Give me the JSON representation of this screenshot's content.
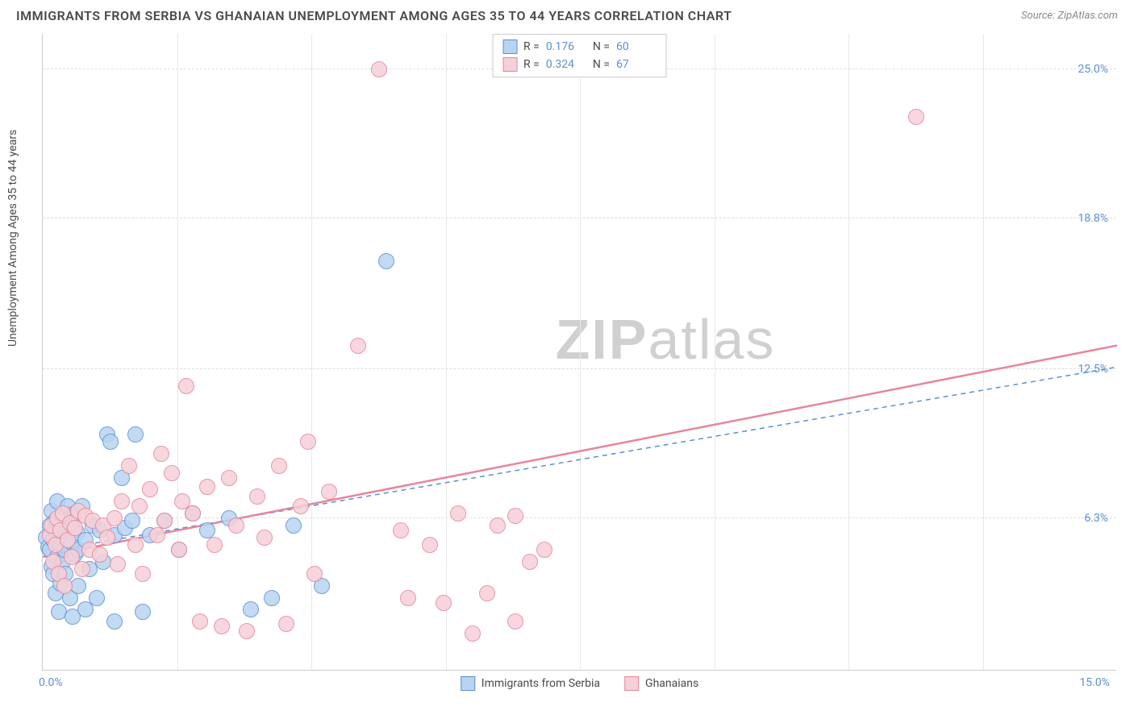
{
  "header": {
    "title": "IMMIGRANTS FROM SERBIA VS GHANAIAN UNEMPLOYMENT AMONG AGES 35 TO 44 YEARS CORRELATION CHART",
    "source": "Source: ZipAtlas.com"
  },
  "watermark": {
    "part1": "ZIP",
    "part2": "atlas"
  },
  "chart": {
    "type": "scatter",
    "ylabel": "Unemployment Among Ages 35 to 44 years",
    "xlim": [
      0,
      15
    ],
    "ylim": [
      0,
      26.5
    ],
    "background_color": "#ffffff",
    "grid_color": "#dddddd",
    "yticks": [
      {
        "v": 6.3,
        "label": "6.3%"
      },
      {
        "v": 12.5,
        "label": "12.5%"
      },
      {
        "v": 18.8,
        "label": "18.8%"
      },
      {
        "v": 25.0,
        "label": "25.0%"
      }
    ],
    "vgrid": [
      1.875,
      3.75,
      5.625,
      7.5,
      9.375,
      11.25,
      13.125
    ],
    "xticks": {
      "left": "0.0%",
      "right": "15.0%"
    },
    "marker_radius": 10,
    "marker_border": 1.5,
    "series": [
      {
        "name": "Immigrants from Serbia",
        "fill": "#b8d4f0",
        "stroke": "#5b8fd6",
        "R": "0.176",
        "N": "60",
        "trend": {
          "x1": 0,
          "y1": 4.9,
          "x2": 15,
          "y2": 12.6,
          "dash": "6,5",
          "width": 1.5,
          "color": "#5b8fd6"
        },
        "points": [
          [
            0.05,
            5.5
          ],
          [
            0.08,
            5.1
          ],
          [
            0.1,
            6.0
          ],
          [
            0.1,
            5.0
          ],
          [
            0.12,
            4.3
          ],
          [
            0.12,
            6.6
          ],
          [
            0.15,
            5.4
          ],
          [
            0.15,
            4.0
          ],
          [
            0.18,
            6.2
          ],
          [
            0.18,
            3.2
          ],
          [
            0.2,
            5.8
          ],
          [
            0.2,
            4.7
          ],
          [
            0.2,
            7.0
          ],
          [
            0.22,
            2.4
          ],
          [
            0.25,
            5.2
          ],
          [
            0.25,
            5.9
          ],
          [
            0.25,
            3.6
          ],
          [
            0.28,
            4.5
          ],
          [
            0.3,
            6.5
          ],
          [
            0.3,
            5.0
          ],
          [
            0.32,
            4.0
          ],
          [
            0.35,
            5.5
          ],
          [
            0.35,
            6.8
          ],
          [
            0.38,
            3.0
          ],
          [
            0.4,
            5.3
          ],
          [
            0.4,
            6.0
          ],
          [
            0.42,
            2.2
          ],
          [
            0.45,
            6.5
          ],
          [
            0.45,
            4.8
          ],
          [
            0.48,
            5.7
          ],
          [
            0.5,
            5.0
          ],
          [
            0.5,
            3.5
          ],
          [
            0.55,
            6.8
          ],
          [
            0.6,
            2.5
          ],
          [
            0.6,
            5.4
          ],
          [
            0.65,
            4.2
          ],
          [
            0.7,
            6.0
          ],
          [
            0.75,
            3.0
          ],
          [
            0.8,
            5.8
          ],
          [
            0.85,
            4.5
          ],
          [
            0.9,
            9.8
          ],
          [
            0.95,
            9.5
          ],
          [
            1.0,
            5.6
          ],
          [
            1.0,
            2.0
          ],
          [
            1.1,
            8.0
          ],
          [
            1.15,
            5.9
          ],
          [
            1.25,
            6.2
          ],
          [
            1.3,
            9.8
          ],
          [
            1.4,
            2.4
          ],
          [
            1.5,
            5.6
          ],
          [
            1.7,
            6.2
          ],
          [
            1.9,
            5.0
          ],
          [
            2.1,
            6.5
          ],
          [
            2.3,
            5.8
          ],
          [
            2.6,
            6.3
          ],
          [
            2.9,
            2.5
          ],
          [
            3.2,
            3.0
          ],
          [
            3.5,
            6.0
          ],
          [
            3.9,
            3.5
          ],
          [
            4.8,
            17.0
          ]
        ]
      },
      {
        "name": "Ghanaians",
        "fill": "#f6d0d8",
        "stroke": "#e6869c",
        "R": "0.324",
        "N": "67",
        "trend": {
          "x1": 0,
          "y1": 4.7,
          "x2": 15,
          "y2": 13.5,
          "dash": "none",
          "width": 2.5,
          "color": "#e6869c"
        },
        "points": [
          [
            0.1,
            5.6
          ],
          [
            0.12,
            6.0
          ],
          [
            0.15,
            4.5
          ],
          [
            0.18,
            5.2
          ],
          [
            0.2,
            6.3
          ],
          [
            0.22,
            4.0
          ],
          [
            0.25,
            5.8
          ],
          [
            0.28,
            6.5
          ],
          [
            0.3,
            3.5
          ],
          [
            0.35,
            5.4
          ],
          [
            0.38,
            6.1
          ],
          [
            0.4,
            4.7
          ],
          [
            0.45,
            5.9
          ],
          [
            0.5,
            6.6
          ],
          [
            0.55,
            4.2
          ],
          [
            0.6,
            6.4
          ],
          [
            0.65,
            5.0
          ],
          [
            0.7,
            6.2
          ],
          [
            0.8,
            4.8
          ],
          [
            0.85,
            6.0
          ],
          [
            0.9,
            5.5
          ],
          [
            1.0,
            6.3
          ],
          [
            1.05,
            4.4
          ],
          [
            1.1,
            7.0
          ],
          [
            1.2,
            8.5
          ],
          [
            1.3,
            5.2
          ],
          [
            1.35,
            6.8
          ],
          [
            1.4,
            4.0
          ],
          [
            1.5,
            7.5
          ],
          [
            1.6,
            5.6
          ],
          [
            1.65,
            9.0
          ],
          [
            1.7,
            6.2
          ],
          [
            1.8,
            8.2
          ],
          [
            1.9,
            5.0
          ],
          [
            1.95,
            7.0
          ],
          [
            2.0,
            11.8
          ],
          [
            2.1,
            6.5
          ],
          [
            2.2,
            2.0
          ],
          [
            2.3,
            7.6
          ],
          [
            2.4,
            5.2
          ],
          [
            2.5,
            1.8
          ],
          [
            2.6,
            8.0
          ],
          [
            2.7,
            6.0
          ],
          [
            2.85,
            1.6
          ],
          [
            3.0,
            7.2
          ],
          [
            3.1,
            5.5
          ],
          [
            3.3,
            8.5
          ],
          [
            3.4,
            1.9
          ],
          [
            3.6,
            6.8
          ],
          [
            3.7,
            9.5
          ],
          [
            3.8,
            4.0
          ],
          [
            4.0,
            7.4
          ],
          [
            4.4,
            13.5
          ],
          [
            4.7,
            25.0
          ],
          [
            5.0,
            5.8
          ],
          [
            5.1,
            3.0
          ],
          [
            5.4,
            5.2
          ],
          [
            5.6,
            2.8
          ],
          [
            5.8,
            6.5
          ],
          [
            6.0,
            1.5
          ],
          [
            6.2,
            3.2
          ],
          [
            6.35,
            6.0
          ],
          [
            6.6,
            2.0
          ],
          [
            6.6,
            6.4
          ],
          [
            6.8,
            4.5
          ],
          [
            12.2,
            23.0
          ],
          [
            7.0,
            5.0
          ]
        ]
      }
    ],
    "bottom_legend": [
      {
        "label": "Immigrants from Serbia",
        "fill": "#b8d4f0",
        "stroke": "#5b8fd6"
      },
      {
        "label": "Ghanaians",
        "fill": "#f6d0d8",
        "stroke": "#e6869c"
      }
    ]
  }
}
